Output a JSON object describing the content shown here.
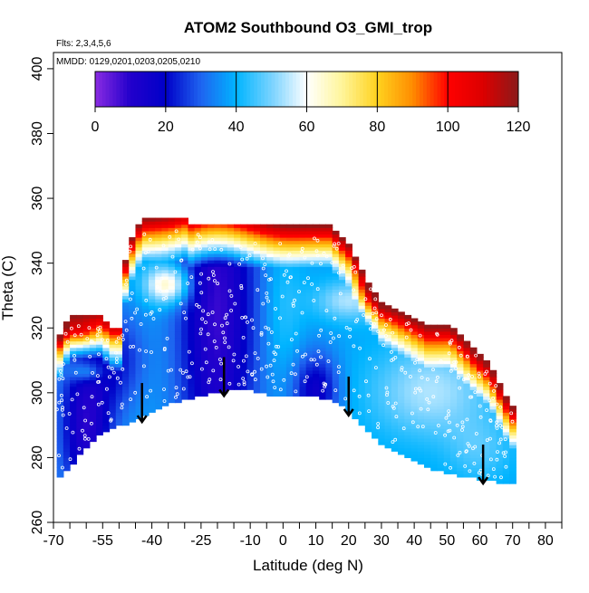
{
  "chart_data": {
    "type": "heatmap",
    "title": "ATOM2 Southbound O3_GMI_trop",
    "notes": {
      "flights": "Flts: 2,3,4,5,6",
      "dates": "MMDD: 0129,0201,0203,0205,0210"
    },
    "xlabel": "Latitude (deg N)",
    "ylabel": "Theta (C)",
    "xlim": [
      -70,
      85
    ],
    "ylim": [
      260,
      405
    ],
    "x_ticks": [
      -70,
      -55,
      -40,
      -25,
      -10,
      0,
      10,
      20,
      30,
      40,
      50,
      60,
      70,
      80
    ],
    "x_minor_ticks": [
      -65,
      -60,
      -50,
      -45,
      -35,
      -30,
      -20,
      -15,
      -5,
      5,
      15,
      25,
      35,
      45,
      55,
      65,
      75,
      85
    ],
    "y_ticks": [
      260,
      280,
      300,
      320,
      340,
      360,
      380,
      400
    ],
    "colorbar": {
      "ticks": [
        0,
        20,
        40,
        60,
        80,
        100,
        120
      ],
      "range": [
        0,
        120
      ],
      "stops": [
        {
          "v": 0,
          "color": "#8a2be2"
        },
        {
          "v": 10,
          "color": "#2200cc"
        },
        {
          "v": 20,
          "color": "#0000c8"
        },
        {
          "v": 30,
          "color": "#1e64f0"
        },
        {
          "v": 40,
          "color": "#00b4ff"
        },
        {
          "v": 50,
          "color": "#78d2ff"
        },
        {
          "v": 60,
          "color": "#ffffff"
        },
        {
          "v": 70,
          "color": "#fff59a"
        },
        {
          "v": 80,
          "color": "#ffd21e"
        },
        {
          "v": 90,
          "color": "#ff8c00"
        },
        {
          "v": 100,
          "color": "#ff0000"
        },
        {
          "v": 110,
          "color": "#dc0000"
        },
        {
          "v": 120,
          "color": "#8b1a1a"
        }
      ]
    },
    "coverage": {
      "lat": [
        -68,
        -66,
        -64,
        -62,
        -60,
        -58,
        -56,
        -54,
        -52,
        -50,
        -48,
        -46,
        -44,
        -42,
        -40,
        -38,
        -36,
        -34,
        -32,
        -30,
        -28,
        -26,
        -24,
        -22,
        -20,
        -18,
        -16,
        -14,
        -12,
        -10,
        -8,
        -6,
        -4,
        -2,
        0,
        2,
        4,
        6,
        8,
        10,
        12,
        14,
        16,
        18,
        20,
        22,
        24,
        26,
        28,
        30,
        32,
        34,
        36,
        38,
        40,
        42,
        44,
        46,
        48,
        50,
        52,
        54,
        56,
        58,
        60,
        62,
        64,
        66,
        68,
        70
      ],
      "theta_bottom": [
        274,
        276,
        278,
        281,
        283,
        285,
        287,
        288,
        289,
        290,
        290,
        291,
        292,
        293,
        294,
        295,
        296,
        297,
        297,
        298,
        298,
        299,
        299,
        300,
        300,
        300,
        301,
        301,
        301,
        301,
        300,
        300,
        299,
        299,
        299,
        299,
        299,
        299,
        299,
        299,
        298,
        298,
        297,
        296,
        294,
        292,
        290,
        288,
        286,
        284,
        283,
        282,
        281,
        280,
        279,
        278,
        277,
        276,
        276,
        275,
        275,
        274,
        274,
        274,
        273,
        273,
        273,
        272,
        272,
        272
      ],
      "theta_top": [
        318,
        322,
        324,
        324,
        324,
        324,
        324,
        322,
        320,
        320,
        341,
        348,
        352,
        354,
        354,
        354,
        354,
        354,
        354,
        354,
        352,
        352,
        352,
        352,
        352,
        352,
        352,
        352,
        352,
        352,
        352,
        352,
        352,
        352,
        352,
        352,
        352,
        352,
        352,
        352,
        352,
        352,
        350,
        348,
        346,
        342,
        338,
        334,
        331,
        328,
        327,
        326,
        325,
        324,
        323,
        322,
        321,
        321,
        321,
        321,
        320,
        318,
        316,
        314,
        312,
        310,
        307,
        303,
        299,
        296
      ]
    },
    "arrows_latitude": [
      -43,
      -18,
      20,
      61
    ]
  }
}
